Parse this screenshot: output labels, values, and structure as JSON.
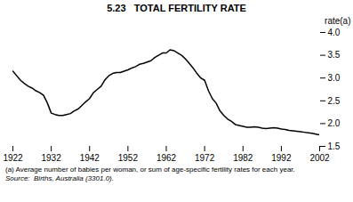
{
  "chart_data": {
    "type": "line",
    "title": "5.23   TOTAL FERTILITY RATE",
    "y_label": "rate(a)",
    "annotations": [
      "(a) Average number of babies per woman, or sum of age-specific fertility rates for each year.",
      "Source:  Births, Australia (3301.0)."
    ],
    "color": "#000000",
    "xlim": [
      1922,
      2002
    ],
    "xticks": [
      1922,
      1932,
      1942,
      1952,
      1962,
      1972,
      1982,
      1992,
      2002
    ],
    "ylim": [
      1.5,
      4.0
    ],
    "yticks": [
      1.5,
      {
        "value": 2.0,
        "label": "2.0"
      },
      2.5,
      {
        "value": 3.0,
        "label": "3.0"
      },
      3.5,
      {
        "value": 4.0,
        "label": "4.0"
      }
    ],
    "x": [
      1922,
      1923,
      1924,
      1925,
      1926,
      1927,
      1928,
      1929,
      1930,
      1931,
      1932,
      1933,
      1934,
      1935,
      1936,
      1937,
      1938,
      1939,
      1940,
      1941,
      1942,
      1943,
      1944,
      1945,
      1946,
      1947,
      1948,
      1949,
      1950,
      1951,
      1952,
      1953,
      1954,
      1955,
      1956,
      1957,
      1958,
      1959,
      1960,
      1961,
      1962,
      1963,
      1964,
      1965,
      1966,
      1967,
      1968,
      1969,
      1970,
      1971,
      1972,
      1973,
      1974,
      1975,
      1976,
      1977,
      1978,
      1979,
      1980,
      1981,
      1982,
      1983,
      1984,
      1985,
      1986,
      1987,
      1988,
      1989,
      1990,
      1991,
      1992,
      1993,
      1994,
      1995,
      1996,
      1997,
      1998,
      1999,
      2000,
      2001,
      2002
    ],
    "values": [
      3.15,
      3.05,
      2.95,
      2.88,
      2.82,
      2.78,
      2.72,
      2.68,
      2.62,
      2.45,
      2.23,
      2.2,
      2.18,
      2.18,
      2.2,
      2.22,
      2.28,
      2.32,
      2.4,
      2.48,
      2.55,
      2.68,
      2.75,
      2.82,
      2.96,
      3.05,
      3.1,
      3.12,
      3.12,
      3.15,
      3.18,
      3.22,
      3.25,
      3.3,
      3.32,
      3.35,
      3.38,
      3.45,
      3.5,
      3.55,
      3.55,
      3.62,
      3.6,
      3.55,
      3.5,
      3.42,
      3.32,
      3.22,
      3.1,
      3.0,
      2.95,
      2.72,
      2.55,
      2.45,
      2.28,
      2.18,
      2.1,
      2.05,
      1.98,
      1.96,
      1.94,
      1.92,
      1.92,
      1.93,
      1.92,
      1.9,
      1.89,
      1.9,
      1.91,
      1.9,
      1.88,
      1.87,
      1.85,
      1.84,
      1.83,
      1.82,
      1.81,
      1.8,
      1.79,
      1.77,
      1.75
    ]
  }
}
